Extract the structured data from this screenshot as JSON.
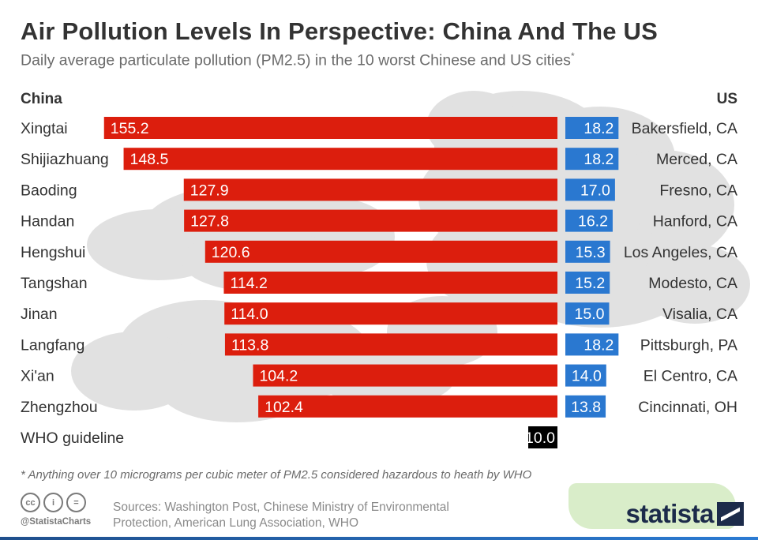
{
  "header": {
    "title": "Air Pollution Levels In Perspective: China And The US",
    "subtitle": "Daily average particulate pollution (PM2.5) in the 10 worst Chinese and US cities",
    "subtitle_mark": "*",
    "china_label": "China",
    "us_label": "US"
  },
  "chart_data": {
    "type": "bar",
    "unit": "PM2.5",
    "china": [
      {
        "city": "Xingtai",
        "value": 155.2
      },
      {
        "city": "Shijiazhuang",
        "value": 148.5
      },
      {
        "city": "Baoding",
        "value": 127.9
      },
      {
        "city": "Handan",
        "value": 127.8
      },
      {
        "city": "Hengshui",
        "value": 120.6
      },
      {
        "city": "Tangshan",
        "value": 114.2
      },
      {
        "city": "Jinan",
        "value": 114.0
      },
      {
        "city": "Langfang",
        "value": 113.8
      },
      {
        "city": "Xi'an",
        "value": 104.2
      },
      {
        "city": "Zhengzhou",
        "value": 102.4
      }
    ],
    "us": [
      {
        "city": "Bakersfield, CA",
        "value": 18.2
      },
      {
        "city": "Merced, CA",
        "value": 18.2
      },
      {
        "city": "Fresno, CA",
        "value": 17.0
      },
      {
        "city": "Hanford, CA",
        "value": 16.2
      },
      {
        "city": "Los Angeles, CA",
        "value": 15.3
      },
      {
        "city": "Modesto, CA",
        "value": 15.2
      },
      {
        "city": "Visalia, CA",
        "value": 15.0
      },
      {
        "city": "Pittsburgh, PA",
        "value": 18.2
      },
      {
        "city": "El Centro, CA",
        "value": 14.0
      },
      {
        "city": "Cincinnati, OH",
        "value": 13.8
      }
    ],
    "guideline": {
      "label": "WHO guideline",
      "value": 10.0
    },
    "colors": {
      "china": "#dc1e0d",
      "us": "#2a78d0",
      "guideline": "#000000",
      "clouds": "#c9c9c9"
    }
  },
  "footer": {
    "footnote": "* Anything over 10 micrograms per cubic meter of PM2.5 considered hazardous to heath by WHO",
    "sources": "Sources: Washington Post, Chinese Ministry of Environmental Protection, American Lung Association, WHO",
    "handle": "@StatistaCharts",
    "logo": "statista",
    "license_icons": [
      "cc-icon",
      "by-icon",
      "nd-icon"
    ],
    "license_glyphs": [
      "cc",
      "i",
      "="
    ]
  }
}
